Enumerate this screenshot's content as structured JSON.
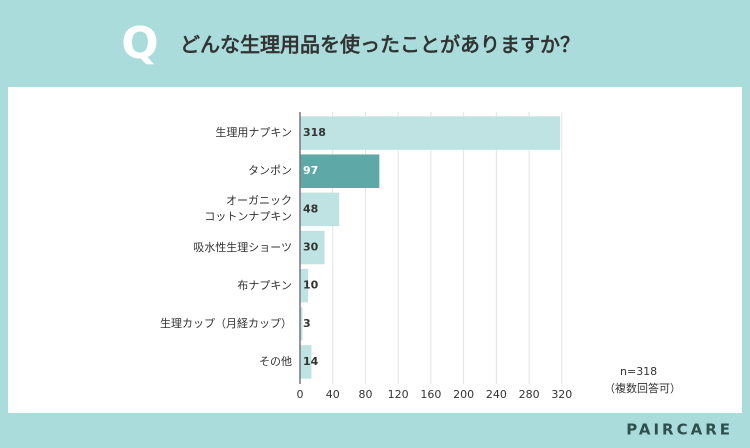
{
  "header": {
    "mark": "Q",
    "title": "どんな生理用品を使ったことがありますか？"
  },
  "chart_data": {
    "type": "bar",
    "orientation": "horizontal",
    "categories": [
      "生理用ナプキン",
      "タンポン",
      "オーガニック\nコットンナプキン",
      "吸水性生理ショーツ",
      "布ナプキン",
      "生理カップ（月経カップ）",
      "その他"
    ],
    "values": [
      318,
      97,
      48,
      30,
      10,
      3,
      14
    ],
    "colors": [
      "#bfe3e2",
      "#5ea8a7",
      "#bfe3e2",
      "#bfe3e2",
      "#bfe3e2",
      "#bfe3e2",
      "#bfe3e2"
    ],
    "label_colors": [
      "#333333",
      "#ffffff",
      "#333333",
      "#333333",
      "#333333",
      "#333333",
      "#333333"
    ],
    "xlim": [
      0,
      330
    ],
    "xticks": [
      0,
      40,
      80,
      120,
      160,
      200,
      240,
      280,
      320
    ],
    "grid": true,
    "annotations": [
      "n=318",
      "（複数回答可）"
    ]
  },
  "footer": {
    "brand": "PAIRCARE"
  }
}
